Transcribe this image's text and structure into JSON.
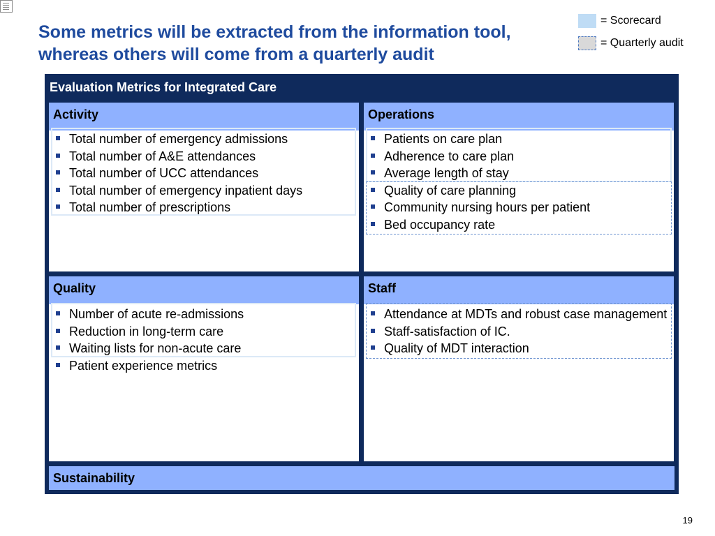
{
  "slide": {
    "title_lines": [
      "Some metrics will be extracted from the information tool,",
      "whereas others will come from a quarterly audit"
    ],
    "page_number": "19"
  },
  "legend": {
    "scorecard_label": "= Scorecard",
    "audit_label": "= Quarterly audit",
    "scorecard_color": "#bfdcf5",
    "audit_color": "#d9d9d9"
  },
  "panel": {
    "title": "Evaluation Metrics for Integrated Care",
    "background_color": "#0f2a5c",
    "header_color": "#8fb1ff"
  },
  "quadrants": {
    "activity": {
      "heading": "Activity",
      "items": [
        "Total number of emergency admissions",
        "Total number of A&E attendances",
        "Total number of UCC attendances",
        "Total number of emergency inpatient days",
        "Total number of prescriptions"
      ]
    },
    "operations": {
      "heading": "Operations",
      "items": [
        "Patients on care plan",
        "Adherence to care plan",
        "Average length of stay",
        "Quality of care planning",
        "Community nursing hours per patient",
        "Bed occupancy rate"
      ]
    },
    "quality": {
      "heading": "Quality",
      "items": [
        "Number of acute re-admissions",
        "Reduction in long-term care",
        "Waiting lists for non-acute care",
        "Patient experience metrics"
      ]
    },
    "staff": {
      "heading": "Staff",
      "items": [
        "Attendance at MDTs and robust case management",
        "Staff-satisfaction of IC.",
        "Quality of MDT interaction"
      ]
    },
    "sustainability": {
      "heading": "Sustainability"
    }
  }
}
